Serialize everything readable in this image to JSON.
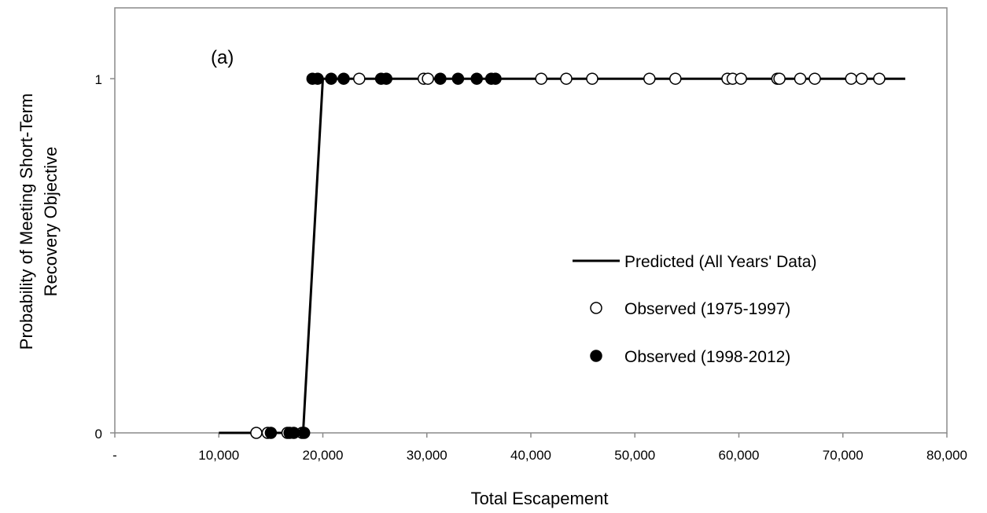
{
  "chart_data": {
    "type": "scatter",
    "panel_label": "(a)",
    "xlabel": "Total Escapement",
    "ylabel_line1": "Probability of Meeting Short-Term",
    "ylabel_line2": "Recovery Objective",
    "xlim": [
      0,
      80000
    ],
    "ylim": [
      0,
      1.2
    ],
    "x_ticks": [
      {
        "value": 0,
        "label": "-"
      },
      {
        "value": 10000,
        "label": "10,000"
      },
      {
        "value": 20000,
        "label": "20,000"
      },
      {
        "value": 30000,
        "label": "30,000"
      },
      {
        "value": 40000,
        "label": "40,000"
      },
      {
        "value": 50000,
        "label": "50,000"
      },
      {
        "value": 60000,
        "label": "60,000"
      },
      {
        "value": 70000,
        "label": "70,000"
      },
      {
        "value": 80000,
        "label": "80,000"
      }
    ],
    "y_ticks": [
      {
        "value": 0,
        "label": "0"
      },
      {
        "value": 1,
        "label": "1"
      }
    ],
    "legend_position": "right-center",
    "series": [
      {
        "name": "Predicted (All Years' Data)",
        "kind": "line",
        "color": "#000000",
        "x": [
          10000,
          18100,
          20000,
          76000
        ],
        "y": [
          0,
          0,
          1,
          1
        ]
      },
      {
        "name": "Observed (1975-1997)",
        "kind": "open-circle",
        "color": "#000000",
        "x": [
          13600,
          14700,
          16600,
          18000,
          23500,
          29700,
          30100,
          41000,
          43400,
          45900,
          51400,
          53900,
          58900,
          59400,
          60200,
          63700,
          63900,
          65900,
          67300,
          70800,
          71800,
          73500
        ],
        "y": [
          0,
          0,
          0,
          0,
          1,
          1,
          1,
          1,
          1,
          1,
          1,
          1,
          1,
          1,
          1,
          1,
          1,
          1,
          1,
          1,
          1,
          1
        ]
      },
      {
        "name": "Observed (1998-2012)",
        "kind": "filled-circle",
        "color": "#000000",
        "x": [
          15000,
          16800,
          17200,
          18200,
          19000,
          19500,
          20800,
          22000,
          25600,
          26100,
          31300,
          33000,
          34800,
          36200,
          36600
        ],
        "y": [
          0,
          0,
          0,
          0,
          1,
          1,
          1,
          1,
          1,
          1,
          1,
          1,
          1,
          1,
          1
        ]
      }
    ]
  }
}
